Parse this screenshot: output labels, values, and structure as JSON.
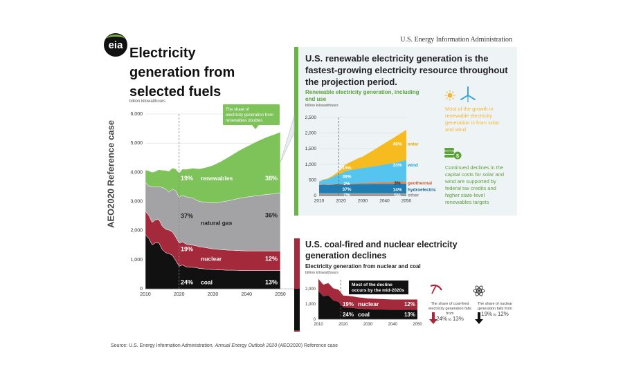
{
  "header": {
    "logo_text": "eia",
    "agency": "U.S. Energy Information Administration",
    "side_label": "AEO2020 Reference case",
    "source_prefix": "Source: U.S. Energy Information Administration, ",
    "source_italic": "Annual Energy Outlook 2020",
    "source_suffix": " (AEO2020) Reference case"
  },
  "colors": {
    "renewables": "#7dc35a",
    "natural_gas": "#a3a3a5",
    "nuclear": "#a4293a",
    "coal": "#111111",
    "solar": "#f6bb1f",
    "wind": "#55c4ee",
    "geothermal": "#f07e3a",
    "hydroelectric": "#1f7db3",
    "other": "#9e9e9e"
  },
  "chart_data": [
    {
      "type": "area",
      "title": "Electricity generation from selected fuels",
      "ylabel": "billion kilowatthours",
      "x": [
        2010,
        2011,
        2012,
        2013,
        2014,
        2015,
        2016,
        2017,
        2018,
        2019,
        2020,
        2021,
        2022,
        2023,
        2024,
        2025,
        2026,
        2027,
        2028,
        2029,
        2030,
        2032,
        2034,
        2036,
        2038,
        2040,
        2042,
        2044,
        2046,
        2048,
        2050
      ],
      "xticks": [
        "2010",
        "2020",
        "2030",
        "2040",
        "2050"
      ],
      "yticks": [
        "0",
        "1,000",
        "2,000",
        "3,000",
        "4,000",
        "5,000",
        "6,000"
      ],
      "ylim": [
        0,
        6000
      ],
      "projection_start": 2020,
      "series": [
        {
          "name": "coal",
          "values": [
            1850,
            1730,
            1510,
            1580,
            1580,
            1350,
            1240,
            1210,
            1150,
            970,
            775,
            820,
            760,
            740,
            740,
            730,
            700,
            690,
            680,
            670,
            660,
            650,
            640,
            640,
            630,
            630,
            630,
            630,
            630,
            630,
            630
          ]
        },
        {
          "name": "nuclear",
          "values": [
            810,
            790,
            770,
            790,
            800,
            800,
            805,
            805,
            805,
            805,
            790,
            790,
            780,
            770,
            760,
            750,
            740,
            740,
            730,
            720,
            710,
            700,
            690,
            680,
            680,
            670,
            670,
            670,
            670,
            670,
            670
          ]
        },
        {
          "name": "natural gas",
          "values": [
            990,
            1010,
            1230,
            1120,
            1130,
            1330,
            1380,
            1300,
            1470,
            1590,
            1570,
            1600,
            1620,
            1630,
            1620,
            1570,
            1560,
            1550,
            1560,
            1570,
            1580,
            1620,
            1680,
            1740,
            1800,
            1850,
            1880,
            1910,
            1940,
            1960,
            1990
          ]
        },
        {
          "name": "renewables",
          "values": [
            430,
            520,
            490,
            540,
            580,
            590,
            640,
            720,
            720,
            750,
            840,
            900,
            940,
            980,
            1020,
            1080,
            1120,
            1160,
            1200,
            1240,
            1290,
            1380,
            1470,
            1560,
            1650,
            1730,
            1820,
            1900,
            1970,
            2030,
            2090
          ]
        }
      ],
      "labels": {
        "renewables": {
          "name": "renewables",
          "start": "19%",
          "end": "38%"
        },
        "natural_gas": {
          "name": "natural gas",
          "start": "37%",
          "end": "36%"
        },
        "nuclear": {
          "name": "nuclear",
          "start": "19%",
          "end": "12%"
        },
        "coal": {
          "name": "coal",
          "start": "24%",
          "end": "13%"
        }
      },
      "annotation": "The share of electricity generation from renewables doubles"
    },
    {
      "type": "area",
      "title": "U.S. renewable electricity generation is the fastest-growing electricity resource throughout the projection period.",
      "subtitle": "Renewable electricity generation, including end use",
      "ylabel": "billion kilowatthours",
      "x": [
        2010,
        2012,
        2014,
        2016,
        2018,
        2020,
        2022,
        2024,
        2026,
        2028,
        2030,
        2035,
        2040,
        2045,
        2050
      ],
      "xticks": [
        "2010",
        "2020",
        "2030",
        "2040",
        "2050"
      ],
      "yticks": [
        "0",
        "500",
        "1,000",
        "1,500",
        "2,000",
        "2,500"
      ],
      "ylim": [
        0,
        2500
      ],
      "projection_start": 2019,
      "series": [
        {
          "name": "other",
          "values": [
            75,
            75,
            78,
            78,
            78,
            78,
            78,
            78,
            78,
            78,
            78,
            78,
            78,
            78,
            78
          ]
        },
        {
          "name": "hydroelectric",
          "values": [
            255,
            275,
            255,
            265,
            290,
            280,
            285,
            285,
            285,
            290,
            290,
            295,
            295,
            295,
            300
          ]
        },
        {
          "name": "geothermal",
          "values": [
            15,
            15,
            16,
            16,
            16,
            16,
            18,
            20,
            24,
            28,
            30,
            40,
            50,
            60,
            70
          ]
        },
        {
          "name": "wind",
          "values": [
            95,
            140,
            180,
            225,
            275,
            330,
            400,
            430,
            450,
            470,
            480,
            520,
            570,
            620,
            690
          ]
        },
        {
          "name": "solar",
          "values": [
            5,
            10,
            20,
            40,
            65,
            120,
            210,
            250,
            290,
            330,
            370,
            520,
            680,
            830,
            970
          ]
        }
      ],
      "labels": {
        "solar": {
          "name": "solar",
          "start": "15%",
          "end": "46%"
        },
        "wind": {
          "name": "wind",
          "start": "38%",
          "end": "33%"
        },
        "geothermal": {
          "name": "geothermal",
          "start": "2%",
          "end": "3%"
        },
        "hydroelectric": {
          "name": "hydroelectric",
          "start": "37%",
          "end": "14%"
        },
        "other": {
          "name": "other",
          "start": "7%",
          "end": "5%"
        }
      },
      "notes": {
        "solar_wind": "Most of the growth in renewable electricity generation is from solar and wind",
        "costs": "Continued declines in the capital costs for solar and wind are supported by federal tax credits and higher state-level renewables targets"
      }
    },
    {
      "type": "area",
      "title": "U.S. coal-fired and nuclear electricity generation declines",
      "subtitle": "Electricity generation from nuclear and coal",
      "ylabel": "billion kilowatthours",
      "x": [
        2010,
        2012,
        2014,
        2016,
        2018,
        2019,
        2020,
        2022,
        2024,
        2026,
        2028,
        2030,
        2035,
        2040,
        2045,
        2050
      ],
      "xticks": [
        "2010",
        "2020",
        "2030",
        "2040",
        "2050"
      ],
      "yticks": [
        "0",
        "1,000",
        "2,000"
      ],
      "ylim": [
        0,
        2600
      ],
      "projection_start": 2019,
      "series": [
        {
          "name": "coal",
          "values": [
            1850,
            1510,
            1580,
            1240,
            1150,
            970,
            775,
            760,
            740,
            700,
            680,
            660,
            640,
            630,
            630,
            630
          ]
        },
        {
          "name": "nuclear",
          "values": [
            810,
            770,
            800,
            805,
            805,
            805,
            790,
            780,
            760,
            740,
            730,
            710,
            690,
            670,
            670,
            670
          ]
        }
      ],
      "labels": {
        "nuclear": {
          "name": "nuclear",
          "start": "19%",
          "end": "12%"
        },
        "coal": {
          "name": "coal",
          "start": "24%",
          "end": "13%"
        }
      },
      "annotation": "Most of the decline occurs by the mid-2020s",
      "falls": {
        "coal_text": "The share of coal-fired electricity generation falls from",
        "coal_from": "24%",
        "coal_to": "13%",
        "to_word": "to",
        "nuclear_text": "The share of nuclear generation falls from",
        "nuclear_from": "19%",
        "nuclear_to": "12%"
      }
    }
  ]
}
